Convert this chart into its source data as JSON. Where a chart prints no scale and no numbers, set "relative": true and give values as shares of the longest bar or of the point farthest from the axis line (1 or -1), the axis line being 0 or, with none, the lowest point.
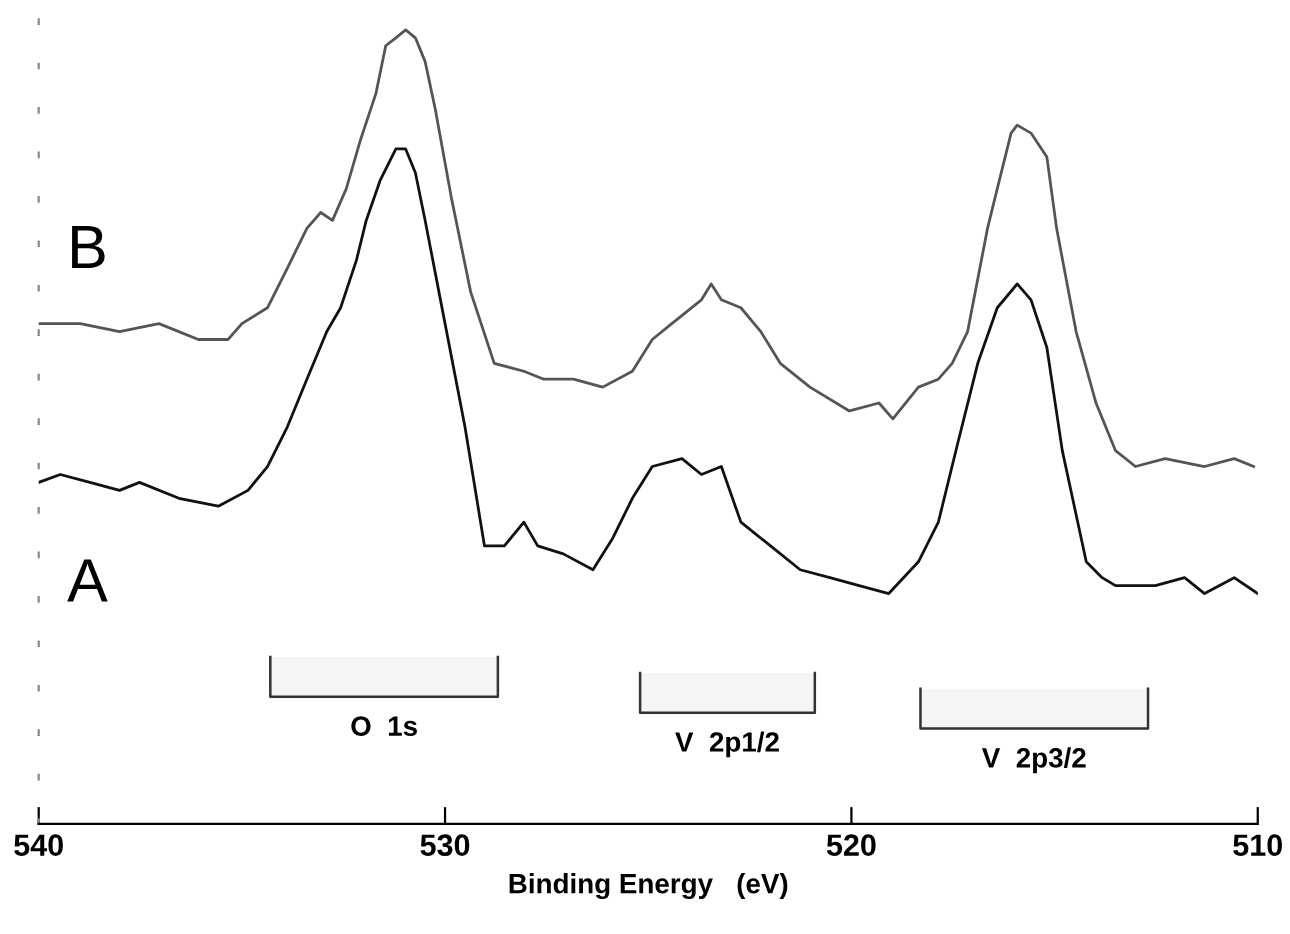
{
  "chart_data": {
    "type": "line",
    "relative": true,
    "xlabel": "Binding Energy   (eV)",
    "xlim": [
      540,
      510
    ],
    "xticks": [
      540,
      530,
      520,
      510
    ],
    "tick_labels": "x",
    "grid": false,
    "legend": false,
    "series": [
      {
        "name": "B",
        "color": "#555555",
        "x": [
          540.0,
          538.98,
          538.01,
          537.04,
          536.07,
          535.34,
          535.0,
          534.37,
          533.88,
          533.4,
          533.06,
          532.77,
          532.43,
          532.09,
          531.7,
          531.46,
          531.21,
          530.97,
          530.73,
          530.49,
          530.24,
          529.85,
          529.37,
          528.79,
          528.06,
          527.57,
          526.84,
          526.12,
          525.39,
          524.9,
          524.42,
          523.69,
          523.45,
          523.2,
          522.72,
          522.23,
          521.75,
          521.02,
          520.05,
          519.32,
          518.98,
          518.35,
          517.86,
          517.52,
          517.14,
          516.65,
          516.41,
          516.07,
          515.92,
          515.58,
          515.19,
          514.95,
          514.47,
          513.98,
          513.5,
          513.01,
          512.28,
          511.31,
          510.58,
          510.1
        ],
        "values": [
          0.63,
          0.63,
          0.62,
          0.63,
          0.61,
          0.61,
          0.63,
          0.65,
          0.7,
          0.75,
          0.77,
          0.76,
          0.8,
          0.86,
          0.92,
          0.98,
          0.99,
          1.0,
          0.99,
          0.96,
          0.9,
          0.79,
          0.67,
          0.58,
          0.57,
          0.56,
          0.56,
          0.55,
          0.57,
          0.61,
          0.63,
          0.66,
          0.68,
          0.66,
          0.65,
          0.62,
          0.58,
          0.55,
          0.52,
          0.53,
          0.51,
          0.55,
          0.56,
          0.58,
          0.62,
          0.75,
          0.8,
          0.87,
          0.88,
          0.87,
          0.84,
          0.75,
          0.62,
          0.53,
          0.47,
          0.45,
          0.46,
          0.45,
          0.46,
          0.45
        ]
      },
      {
        "name": "A",
        "color": "#111111",
        "x": [
          540.0,
          539.47,
          538.74,
          538.01,
          537.52,
          536.55,
          535.58,
          534.85,
          534.37,
          533.88,
          533.4,
          532.91,
          532.57,
          532.18,
          531.94,
          531.6,
          531.21,
          530.97,
          530.73,
          530.49,
          530.0,
          529.51,
          529.03,
          528.54,
          528.06,
          527.72,
          527.09,
          526.36,
          525.87,
          525.39,
          524.9,
          524.17,
          523.69,
          523.2,
          522.72,
          521.99,
          521.26,
          520.53,
          519.81,
          519.08,
          518.35,
          517.86,
          517.38,
          516.89,
          516.41,
          515.92,
          515.58,
          515.19,
          514.81,
          514.22,
          513.83,
          513.5,
          512.52,
          511.8,
          511.31,
          510.58,
          510.0
        ],
        "values": [
          0.43,
          0.44,
          0.43,
          0.42,
          0.43,
          0.41,
          0.4,
          0.42,
          0.45,
          0.5,
          0.56,
          0.62,
          0.65,
          0.71,
          0.76,
          0.81,
          0.85,
          0.85,
          0.82,
          0.76,
          0.63,
          0.5,
          0.35,
          0.35,
          0.38,
          0.35,
          0.34,
          0.32,
          0.36,
          0.41,
          0.45,
          0.46,
          0.44,
          0.45,
          0.38,
          0.35,
          0.32,
          0.31,
          0.3,
          0.29,
          0.33,
          0.38,
          0.48,
          0.58,
          0.65,
          0.68,
          0.66,
          0.6,
          0.47,
          0.33,
          0.31,
          0.3,
          0.3,
          0.31,
          0.29,
          0.31,
          0.29
        ]
      }
    ],
    "bands": [
      {
        "axis": "x",
        "from": 534.3,
        "to": 528.7,
        "label": "O  1s"
      },
      {
        "axis": "x",
        "from": 525.2,
        "to": 520.9,
        "label": "V  2p1/2"
      },
      {
        "axis": "x",
        "from": 518.3,
        "to": 512.7,
        "label": "V  2p3/2"
      }
    ]
  }
}
